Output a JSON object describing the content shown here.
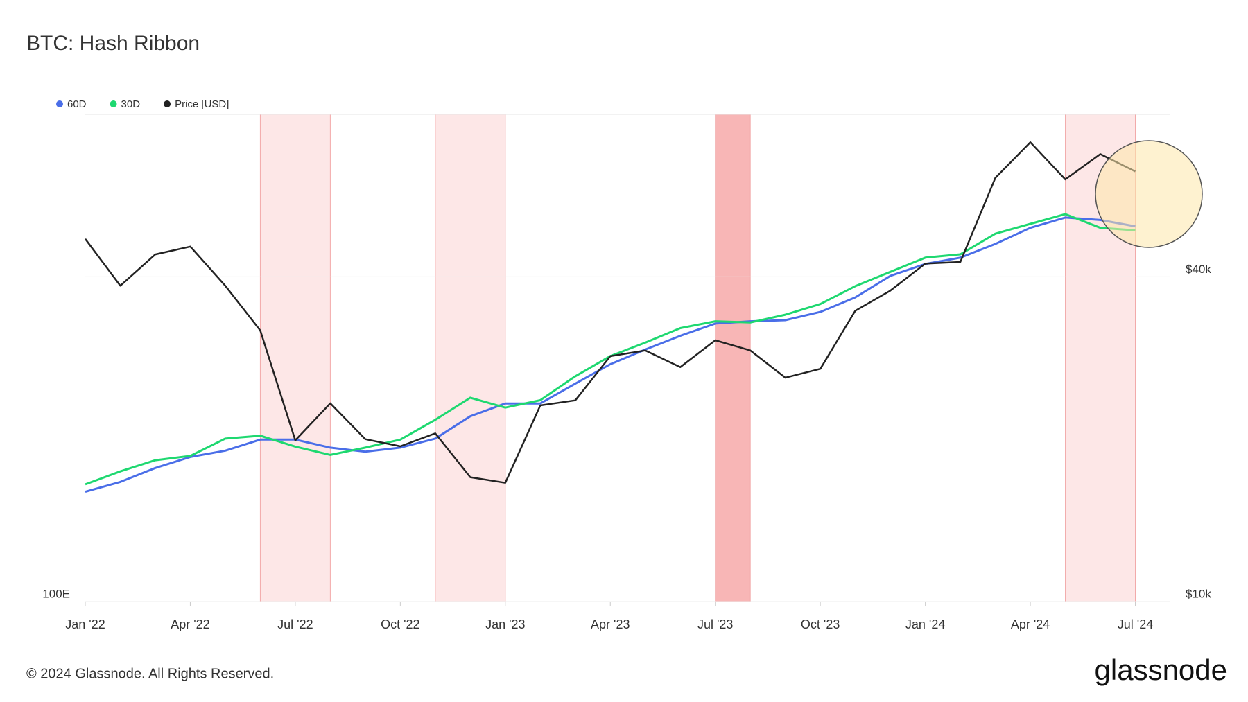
{
  "chart_data": {
    "type": "line",
    "title": "BTC: Hash Ribbon",
    "x": [
      "2022-01",
      "2022-02",
      "2022-03",
      "2022-04",
      "2022-05",
      "2022-06",
      "2022-07",
      "2022-08",
      "2022-09",
      "2022-10",
      "2022-11",
      "2022-12",
      "2023-01",
      "2023-02",
      "2023-03",
      "2023-04",
      "2023-05",
      "2023-06",
      "2023-07",
      "2023-08",
      "2023-09",
      "2023-10",
      "2023-11",
      "2023-12",
      "2024-01",
      "2024-02",
      "2024-03",
      "2024-04",
      "2024-05",
      "2024-06",
      "2024-07"
    ],
    "series": [
      {
        "name": "60D",
        "color": "#4a6ee8",
        "values": [
          168,
          176,
          188,
          198,
          204,
          215,
          215,
          207,
          203,
          207,
          216,
          240,
          255,
          255,
          280,
          307,
          329,
          351,
          372,
          376,
          378,
          393,
          421,
          466,
          493,
          508,
          542,
          585,
          614,
          607,
          589
        ]
      },
      {
        "name": "30D",
        "color": "#1ed870",
        "values": [
          174,
          185,
          195,
          199,
          216,
          219,
          208,
          200,
          207,
          215,
          236,
          262,
          250,
          259,
          290,
          319,
          340,
          364,
          376,
          374,
          388,
          408,
          444,
          475,
          508,
          516,
          569,
          596,
          624,
          585,
          578
        ]
      },
      {
        "name": "Price [USD]",
        "color": "#222222",
        "axis": "y2",
        "values": [
          47000,
          38500,
          44000,
          45500,
          38500,
          31800,
          19900,
          23300,
          20000,
          19400,
          20500,
          17000,
          16600,
          23100,
          23600,
          28500,
          29200,
          27200,
          30500,
          29200,
          26000,
          27000,
          34600,
          37700,
          42300,
          42600,
          61000,
          71000,
          60600,
          67500,
          62700
        ]
      }
    ],
    "bands": [
      {
        "start": "2022-06",
        "end": "2022-08",
        "color": "#fde7e7"
      },
      {
        "start": "2022-11",
        "end": "2023-01",
        "color": "#fde7e7"
      },
      {
        "start": "2023-07",
        "end": "2023-08",
        "color": "#f8b6b6"
      },
      {
        "start": "2024-05",
        "end": "2024-07",
        "color": "#fde7e7"
      }
    ],
    "xlim": [
      "2022-01",
      "2024-08"
    ],
    "xticks": [
      {
        "value": "2022-01",
        "label": "Jan '22"
      },
      {
        "value": "2022-04",
        "label": "Apr '22"
      },
      {
        "value": "2022-07",
        "label": "Jul '22"
      },
      {
        "value": "2022-10",
        "label": "Oct '22"
      },
      {
        "value": "2023-01",
        "label": "Jan '23"
      },
      {
        "value": "2023-04",
        "label": "Apr '23"
      },
      {
        "value": "2023-07",
        "label": "Jul '23"
      },
      {
        "value": "2023-10",
        "label": "Oct '23"
      },
      {
        "value": "2024-01",
        "label": "Jan '24"
      },
      {
        "value": "2024-04",
        "label": "Apr '24"
      },
      {
        "value": "2024-07",
        "label": "Jul '24"
      }
    ],
    "ylim": [
      100,
      1000
    ],
    "yticks": [
      {
        "value": 100,
        "label": "100E"
      }
    ],
    "y2lim": [
      10000,
      80000
    ],
    "y2ticks": [
      {
        "value": 10000,
        "label": "$10k"
      },
      {
        "value": 40000,
        "label": "$40k"
      }
    ],
    "log_scale": true,
    "grid": true,
    "legend": "top-left"
  },
  "footer": {
    "copyright": "© 2024 Glassnode. All Rights Reserved.",
    "brand": "glassnode"
  }
}
